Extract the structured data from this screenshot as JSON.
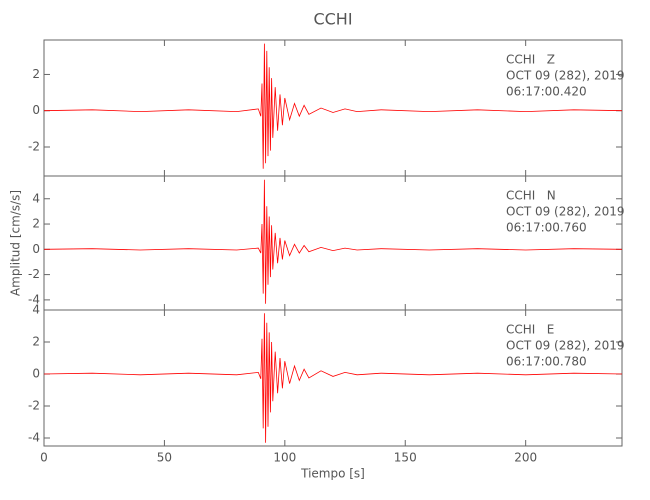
{
  "chart_data": [
    {
      "type": "line",
      "title": "CCHI",
      "annotations": [
        "CCHI   Z",
        "OCT 09 (282), 2019",
        "06:17:00.420"
      ],
      "x": [
        0,
        20,
        40,
        60,
        80,
        89,
        90,
        90.5,
        91,
        91.5,
        92,
        92.5,
        93,
        93.5,
        94,
        94.5,
        95,
        96,
        97,
        98,
        99,
        100,
        102,
        104,
        106,
        108,
        110,
        115,
        120,
        125,
        130,
        140,
        160,
        180,
        200,
        220,
        240
      ],
      "values": [
        0,
        0.05,
        -0.05,
        0.05,
        -0.05,
        0.1,
        -0.3,
        1.5,
        -3.2,
        3.7,
        -2.9,
        3.3,
        -2.5,
        2.4,
        -2.2,
        1.8,
        -1.5,
        1.3,
        -1.1,
        0.9,
        -0.8,
        0.7,
        -0.5,
        0.4,
        -0.3,
        0.3,
        -0.2,
        0.15,
        -0.1,
        0.1,
        -0.05,
        0.05,
        -0.05,
        0.05,
        -0.05,
        0.05,
        0
      ],
      "color": "#ff0000",
      "xlim": [
        0,
        240
      ],
      "xticks": [
        0,
        50,
        100,
        150,
        200
      ],
      "ylim": [
        -3.6,
        3.9
      ],
      "yticks": [
        -2,
        0,
        2
      ]
    },
    {
      "type": "line",
      "ylabel": "Amplitud [cm/s/s]",
      "annotations": [
        "CCHI   N",
        "OCT 09 (282), 2019",
        "06:17:00.760"
      ],
      "x": [
        0,
        20,
        40,
        60,
        80,
        89,
        90,
        90.5,
        91,
        91.5,
        92,
        92.5,
        93,
        93.5,
        94,
        94.5,
        95,
        96,
        97,
        98,
        99,
        100,
        102,
        104,
        106,
        108,
        110,
        115,
        120,
        125,
        130,
        140,
        160,
        180,
        200,
        220,
        240
      ],
      "values": [
        0,
        0.05,
        -0.05,
        0.05,
        -0.05,
        0.1,
        -0.3,
        2.0,
        -3.5,
        5.5,
        -4.3,
        3.4,
        -2.8,
        2.6,
        -2.2,
        1.9,
        -1.6,
        1.3,
        -1.1,
        0.9,
        -0.8,
        0.7,
        -0.5,
        0.4,
        -0.3,
        0.3,
        -0.2,
        0.15,
        -0.1,
        0.1,
        -0.05,
        0.05,
        -0.05,
        0.05,
        -0.05,
        0.05,
        0
      ],
      "color": "#ff0000",
      "xlim": [
        0,
        240
      ],
      "xticks": [
        0,
        50,
        100,
        150,
        200
      ],
      "ylim": [
        -4.8,
        5.8
      ],
      "yticks": [
        -4,
        -2,
        0,
        2,
        4
      ]
    },
    {
      "type": "line",
      "xlabel": "Tiempo [s]",
      "annotations": [
        "CCHI   E",
        "OCT 09 (282), 2019",
        "06:17:00.780"
      ],
      "x": [
        0,
        20,
        40,
        60,
        80,
        89,
        90,
        90.5,
        91,
        91.5,
        92,
        92.5,
        93,
        93.5,
        94,
        94.5,
        95,
        96,
        97,
        98,
        99,
        100,
        102,
        104,
        106,
        108,
        110,
        115,
        120,
        125,
        130,
        140,
        160,
        180,
        200,
        220,
        240
      ],
      "values": [
        0,
        0.05,
        -0.05,
        0.05,
        -0.05,
        0.1,
        -0.3,
        2.2,
        -3.4,
        3.8,
        -4.3,
        3.2,
        -3.3,
        2.6,
        -2.4,
        2.0,
        -1.7,
        1.4,
        -1.2,
        1.0,
        -0.9,
        0.8,
        -0.6,
        0.5,
        -0.4,
        0.3,
        -0.25,
        0.2,
        -0.15,
        0.1,
        -0.05,
        0.05,
        -0.05,
        0.05,
        -0.05,
        0.05,
        0
      ],
      "color": "#ff0000",
      "xlim": [
        0,
        240
      ],
      "xticks": [
        0,
        50,
        100,
        150,
        200
      ],
      "ylim": [
        -4.5,
        4.0
      ],
      "yticks": [
        -4,
        -2,
        0,
        2,
        4
      ]
    }
  ]
}
